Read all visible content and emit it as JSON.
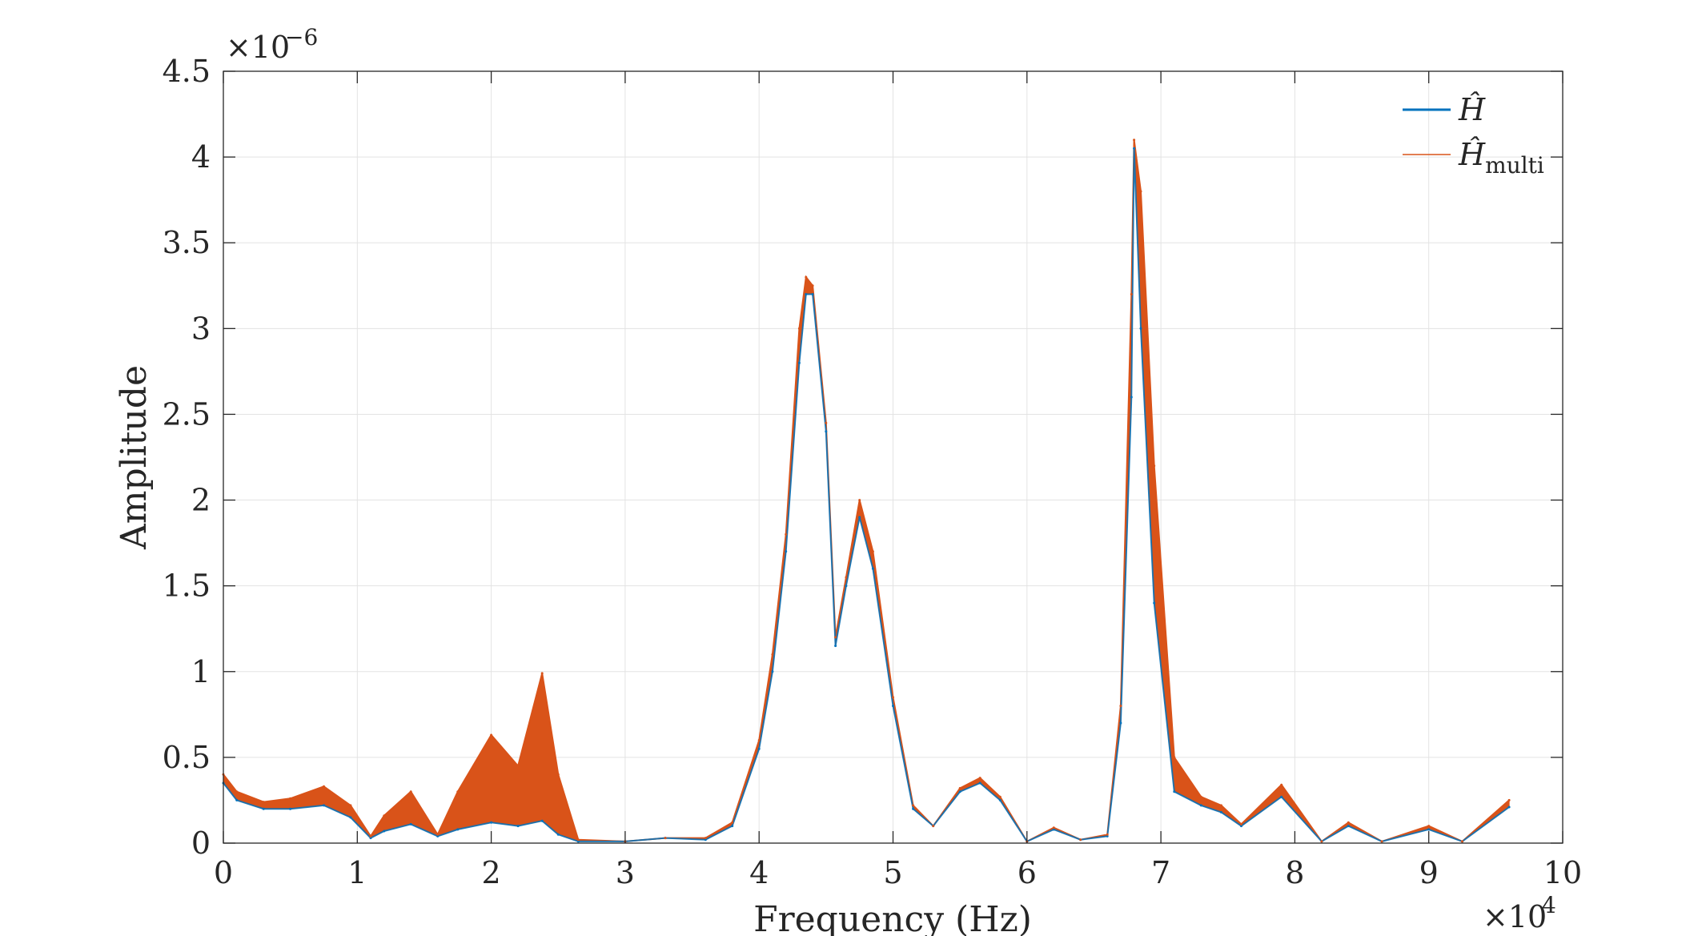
{
  "chart_data": {
    "type": "line",
    "xlabel": "Frequency (Hz)",
    "ylabel": "Amplitude",
    "x_multiplier_label": "×10",
    "x_multiplier_exp": "4",
    "y_multiplier_label": "×10",
    "y_multiplier_exp": "−6",
    "xlim": [
      0,
      10
    ],
    "ylim": [
      0,
      4.5
    ],
    "x_ticks": [
      "0",
      "1",
      "2",
      "3",
      "4",
      "5",
      "6",
      "7",
      "8",
      "9",
      "10"
    ],
    "y_ticks": [
      "0",
      "0.5",
      "1",
      "1.5",
      "2",
      "2.5",
      "3",
      "3.5",
      "4",
      "4.5"
    ],
    "grid": true,
    "legend_position": "top-right",
    "series": [
      {
        "name": "Ĥ",
        "color": "#0072BD",
        "x": [
          0,
          0.1,
          0.3,
          0.5,
          0.75,
          0.95,
          1.1,
          1.2,
          1.4,
          1.6,
          1.75,
          2.0,
          2.2,
          2.38,
          2.5,
          2.65,
          3.0,
          3.3,
          3.6,
          3.8,
          4.0,
          4.1,
          4.2,
          4.3,
          4.35,
          4.4,
          4.5,
          4.57,
          4.65,
          4.75,
          4.85,
          5.0,
          5.15,
          5.3,
          5.5,
          5.65,
          5.8,
          6.0,
          6.2,
          6.4,
          6.6,
          6.7,
          6.78,
          6.8,
          6.85,
          6.95,
          7.1,
          7.3,
          7.45,
          7.6,
          7.9,
          8.2,
          8.4,
          8.65,
          9.0,
          9.25,
          9.6
        ],
        "y": [
          0.35,
          0.25,
          0.2,
          0.2,
          0.22,
          0.15,
          0.03,
          0.07,
          0.11,
          0.04,
          0.08,
          0.12,
          0.1,
          0.13,
          0.05,
          0.01,
          0.01,
          0.03,
          0.02,
          0.1,
          0.55,
          1.0,
          1.7,
          2.8,
          3.2,
          3.2,
          2.4,
          1.15,
          1.5,
          1.9,
          1.6,
          0.8,
          0.2,
          0.1,
          0.3,
          0.35,
          0.25,
          0.01,
          0.08,
          0.02,
          0.04,
          0.7,
          2.6,
          4.05,
          3.0,
          1.4,
          0.3,
          0.22,
          0.18,
          0.1,
          0.27,
          0.01,
          0.1,
          0.01,
          0.08,
          0.01,
          0.21
        ]
      },
      {
        "name": "Ĥ",
        "name_sub": "multi",
        "color": "#D95319",
        "x": [
          0,
          0.1,
          0.3,
          0.5,
          0.75,
          0.95,
          1.1,
          1.2,
          1.4,
          1.6,
          1.75,
          2.0,
          2.2,
          2.38,
          2.5,
          2.65,
          3.0,
          3.3,
          3.6,
          3.8,
          4.0,
          4.1,
          4.2,
          4.3,
          4.35,
          4.4,
          4.5,
          4.57,
          4.65,
          4.75,
          4.85,
          5.0,
          5.15,
          5.3,
          5.5,
          5.65,
          5.8,
          6.0,
          6.2,
          6.4,
          6.6,
          6.7,
          6.78,
          6.8,
          6.85,
          6.95,
          7.1,
          7.3,
          7.45,
          7.6,
          7.9,
          8.2,
          8.4,
          8.65,
          9.0,
          9.25,
          9.6
        ],
        "y": [
          0.4,
          0.3,
          0.24,
          0.26,
          0.33,
          0.22,
          0.04,
          0.16,
          0.3,
          0.05,
          0.3,
          0.63,
          0.45,
          0.99,
          0.4,
          0.02,
          0.01,
          0.03,
          0.03,
          0.12,
          0.6,
          1.1,
          1.8,
          3.0,
          3.3,
          3.25,
          2.45,
          1.2,
          1.55,
          2.0,
          1.7,
          0.85,
          0.22,
          0.1,
          0.32,
          0.38,
          0.27,
          0.01,
          0.09,
          0.02,
          0.05,
          0.8,
          3.2,
          4.1,
          3.8,
          2.2,
          0.5,
          0.27,
          0.22,
          0.11,
          0.34,
          0.01,
          0.12,
          0.01,
          0.1,
          0.01,
          0.25
        ]
      }
    ]
  }
}
